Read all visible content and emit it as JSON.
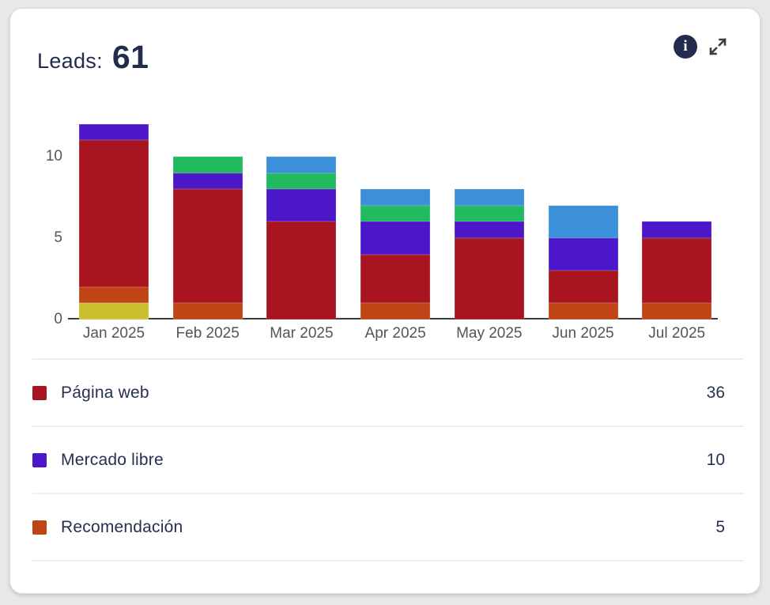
{
  "card": {
    "header": {
      "title_label": "Leads:",
      "total": "61",
      "info_icon": "info-circle",
      "expand_icon": "expand-arrows"
    },
    "legend": {
      "items": [
        {
          "label": "Página web",
          "value": "36",
          "color": "#a81420"
        },
        {
          "label": "Mercado libre",
          "value": "10",
          "color": "#4b17c9"
        },
        {
          "label": "Recomendación",
          "value": "5",
          "color": "#bf4517"
        }
      ]
    }
  },
  "chart_data": {
    "type": "bar",
    "stacked": true,
    "title": "Leads: 61",
    "categories": [
      "Jan 2025",
      "Feb 2025",
      "Mar 2025",
      "Apr 2025",
      "May 2025",
      "Jun 2025",
      "Jul 2025"
    ],
    "series": [
      {
        "name": "",
        "color": "#c9bf2e",
        "values": [
          1,
          0,
          0,
          0,
          0,
          0,
          0
        ]
      },
      {
        "name": "Recomendación",
        "color": "#bf4517",
        "values": [
          1,
          1,
          0,
          1,
          0,
          1,
          1
        ]
      },
      {
        "name": "Página web",
        "color": "#a81420",
        "values": [
          9,
          7,
          6,
          3,
          5,
          2,
          4
        ]
      },
      {
        "name": "Mercado libre",
        "color": "#4b17c9",
        "values": [
          1,
          1,
          2,
          2,
          1,
          2,
          1
        ]
      },
      {
        "name": "",
        "color": "#21ba5e",
        "values": [
          0,
          1,
          1,
          1,
          1,
          0,
          0
        ]
      },
      {
        "name": "",
        "color": "#3b90d9",
        "values": [
          0,
          0,
          1,
          1,
          1,
          2,
          0
        ]
      }
    ],
    "stack_order": "bottom-to-top",
    "monthly_totals": [
      12,
      10,
      10,
      8,
      8,
      7,
      6
    ],
    "xlabel": "",
    "ylabel": "",
    "ylim": [
      0,
      12
    ],
    "yticks": [
      0,
      5,
      10
    ],
    "grid": false,
    "legend_position": "bottom"
  }
}
